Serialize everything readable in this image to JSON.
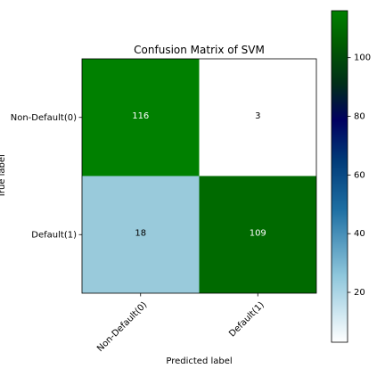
{
  "chart_data": {
    "type": "heatmap",
    "title": "Confusion Matrix of SVM",
    "xlabel": "Predicted label",
    "ylabel": "True label",
    "x_categories": [
      "Non-Default(0)",
      "Default(1)"
    ],
    "y_categories": [
      "Non-Default(0)",
      "Default(1)"
    ],
    "matrix": [
      [
        116,
        3
      ],
      [
        18,
        109
      ]
    ],
    "colormap": "ocean_r",
    "value_range": [
      3,
      116
    ],
    "colorbar_ticks": [
      20,
      40,
      60,
      80,
      100
    ],
    "grid": false
  },
  "colors": {
    "cells": [
      [
        "#008000",
        "#ffffff"
      ],
      [
        "#99cadb",
        "#006a00"
      ]
    ],
    "text_on_dark": "#ffffff",
    "text_on_light": "#000000"
  }
}
